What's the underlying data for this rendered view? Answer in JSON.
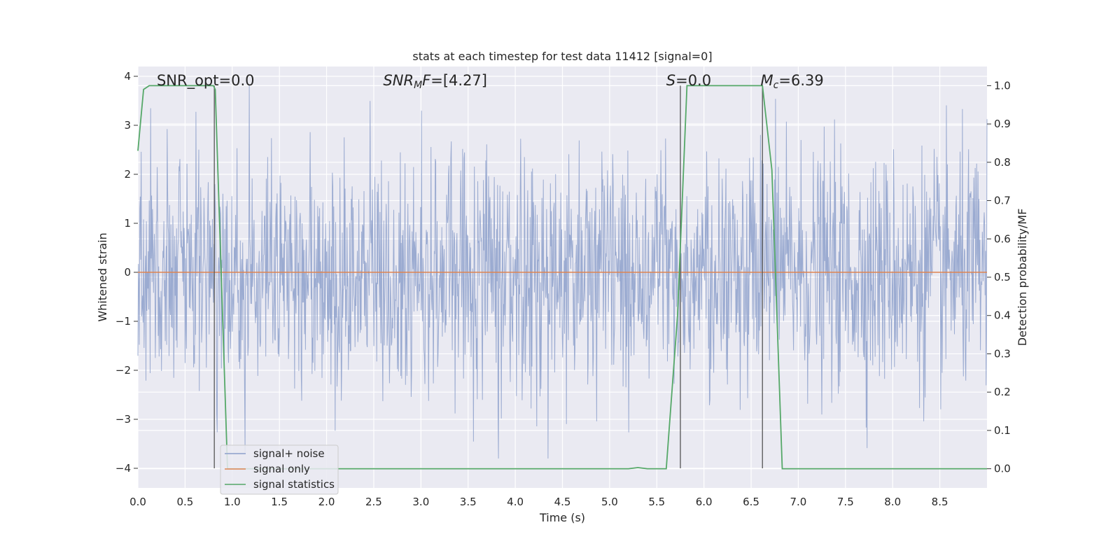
{
  "chart_data": {
    "type": "line",
    "title": "stats at each timestep for test data 11412 [signal=0]",
    "xlabel": "Time (s)",
    "ylabel": "Whitened strain",
    "y2label": "Detection probability/MF",
    "xlim": [
      0,
      9.0
    ],
    "ylim": [
      -4.4,
      4.2
    ],
    "y2lim": [
      -0.05,
      1.05
    ],
    "xticks": [
      0.0,
      0.5,
      1.0,
      1.5,
      2.0,
      2.5,
      3.0,
      3.5,
      4.0,
      4.5,
      5.0,
      5.5,
      6.0,
      6.5,
      7.0,
      7.5,
      8.0,
      8.5
    ],
    "xtick_labels": [
      "0.0",
      "0.5",
      "1.0",
      "1.5",
      "2.0",
      "2.5",
      "3.0",
      "3.5",
      "4.0",
      "4.5",
      "5.0",
      "5.5",
      "6.0",
      "6.5",
      "7.0",
      "7.5",
      "8.0",
      "8.5"
    ],
    "yticks": [
      4,
      3,
      2,
      1,
      0,
      -1,
      -2,
      -3,
      -4
    ],
    "ytick_labels": [
      "4",
      "3",
      "2",
      "1",
      "0",
      "−1",
      "−2",
      "−3",
      "−4"
    ],
    "y2ticks": [
      1.0,
      0.9,
      0.8,
      0.7,
      0.6,
      0.5,
      0.4,
      0.3,
      0.2,
      0.1,
      0.0
    ],
    "y2tick_labels": [
      "1.0",
      "0.9",
      "0.8",
      "0.7",
      "0.6",
      "0.5",
      "0.4",
      "0.3",
      "0.2",
      "0.1",
      "0.0"
    ],
    "grid": true,
    "legend_position": "lower-left",
    "series": [
      {
        "name": "signal+ noise",
        "axis": "left",
        "color": "#8da0cb",
        "noise_envelope": {
          "typical_band": [
            -1.6,
            1.5
          ],
          "max_peak": 3.9,
          "min_peak": -3.8
        }
      },
      {
        "name": "signal only",
        "axis": "left",
        "color": "#dd8452",
        "x": [
          0.0,
          9.0
        ],
        "y": [
          0.0,
          0.0
        ]
      },
      {
        "name": "signal statistics",
        "axis": "right",
        "color": "#55a868",
        "x": [
          0.0,
          0.06,
          0.12,
          0.8,
          0.82,
          0.95,
          5.2,
          5.3,
          5.4,
          5.6,
          5.72,
          5.82,
          6.62,
          6.72,
          6.83,
          9.0
        ],
        "y": [
          0.83,
          0.99,
          1.0,
          1.0,
          0.99,
          0.0,
          0.0,
          0.003,
          0.0,
          0.0,
          0.4,
          1.0,
          1.0,
          0.78,
          0.0,
          0.0
        ]
      }
    ],
    "vertical_markers": [
      0.81,
      5.75,
      6.62
    ],
    "annotations": [
      {
        "text": "SNR_opt=0.0",
        "x": 0.2
      },
      {
        "text": "=[4.27]",
        "x": 2.6,
        "math_prefix": {
          "main": "SNR",
          "sub": "M",
          "tail": "F"
        }
      },
      {
        "text": "=0.0",
        "x": 5.6,
        "math_prefix": {
          "main": "S"
        }
      },
      {
        "text": "=6.39",
        "x": 6.6,
        "math_prefix": {
          "main": "M",
          "sub": "c"
        }
      }
    ]
  }
}
